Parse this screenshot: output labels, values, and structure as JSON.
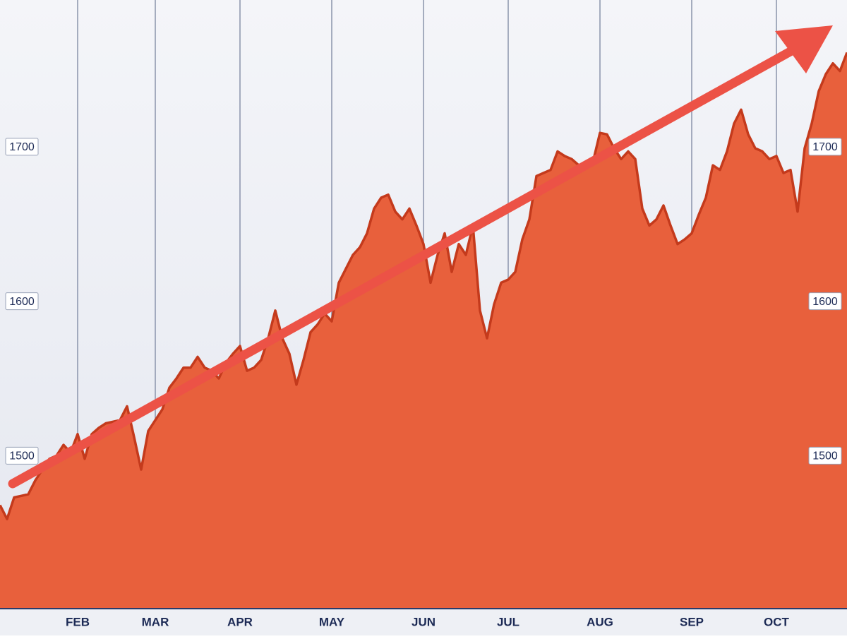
{
  "chart_data": {
    "type": "area",
    "categories": [
      null,
      null,
      null,
      null,
      null,
      null,
      null,
      null,
      null,
      null,
      null,
      "FEB",
      null,
      null,
      null,
      null,
      null,
      null,
      null,
      null,
      null,
      null,
      "MAR",
      null,
      null,
      null,
      null,
      null,
      null,
      null,
      null,
      null,
      null,
      null,
      "APR",
      null,
      null,
      null,
      null,
      null,
      null,
      null,
      null,
      null,
      null,
      null,
      null,
      "MAY",
      null,
      null,
      null,
      null,
      null,
      null,
      null,
      null,
      null,
      null,
      null,
      null,
      "JUN",
      null,
      null,
      null,
      null,
      null,
      null,
      null,
      null,
      null,
      null,
      null,
      "JUL",
      null,
      null,
      null,
      null,
      null,
      null,
      null,
      null,
      null,
      null,
      null,
      null,
      "AUG",
      null,
      null,
      null,
      null,
      null,
      null,
      null,
      null,
      null,
      null,
      null,
      null,
      "SEP",
      null,
      null,
      null,
      null,
      null,
      null,
      null,
      null,
      null,
      null,
      null,
      "OCT",
      null,
      null,
      null,
      null,
      null,
      null,
      null,
      null,
      null,
      null
    ],
    "values": [
      1468,
      1459,
      1473,
      1474,
      1475,
      1484,
      1491,
      1498,
      1500,
      1507,
      1502,
      1514,
      1498,
      1514,
      1518,
      1521,
      1522,
      1523,
      1532,
      1512,
      1491,
      1516,
      1523,
      1530,
      1544,
      1550,
      1557,
      1557,
      1564,
      1557,
      1555,
      1550,
      1560,
      1566,
      1571,
      1555,
      1557,
      1562,
      1576,
      1594,
      1576,
      1566,
      1546,
      1562,
      1580,
      1585,
      1592,
      1587,
      1612,
      1621,
      1630,
      1635,
      1644,
      1660,
      1667,
      1669,
      1658,
      1653,
      1660,
      1649,
      1637,
      1612,
      1630,
      1644,
      1619,
      1637,
      1630,
      1649,
      1594,
      1576,
      1598,
      1612,
      1614,
      1619,
      1640,
      1653,
      1681,
      1683,
      1685,
      1697,
      1694,
      1692,
      1688,
      1690,
      1690,
      1709,
      1708,
      1699,
      1692,
      1697,
      1692,
      1660,
      1649,
      1653,
      1662,
      1649,
      1637,
      1640,
      1644,
      1656,
      1667,
      1688,
      1685,
      1697,
      1715,
      1724,
      1708,
      1699,
      1697,
      1692,
      1694,
      1683,
      1685,
      1658,
      1699,
      1715,
      1736,
      1747,
      1754,
      1749,
      1761
    ],
    "color": "#e8603c",
    "line_color": "#c43a1c",
    "ylim": [
      1401,
      1795
    ],
    "yticks": [
      1500,
      1600,
      1700
    ],
    "grid": true
  }
}
